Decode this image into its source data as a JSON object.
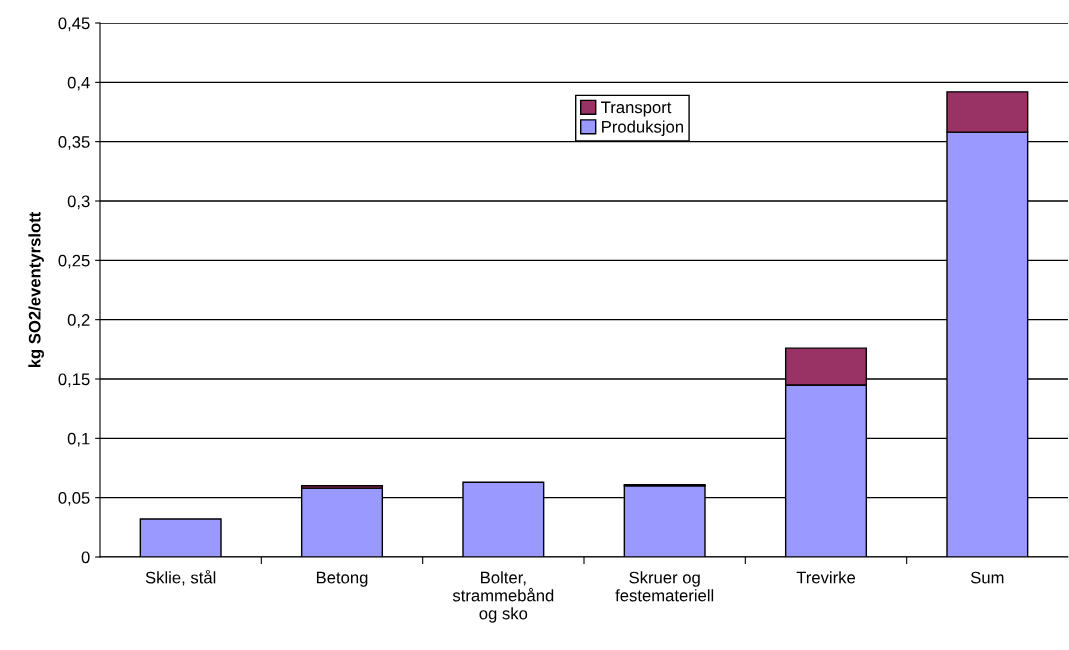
{
  "chart_data": {
    "type": "bar",
    "stacked": true,
    "ylabel": "kg SO2/eventyrslott",
    "categories": [
      "Sklie, stål",
      "Betong",
      "Bolter,\nstrammebånd\nog sko",
      "Skruer og\nfestemateriell",
      "Trevirke",
      "Sum"
    ],
    "series": [
      {
        "name": "Produksjon",
        "color": "#9999ff",
        "values": [
          0.032,
          0.058,
          0.063,
          0.06,
          0.145,
          0.358
        ]
      },
      {
        "name": "Transport",
        "color": "#993366",
        "values": [
          null,
          0.002,
          null,
          0.001,
          0.031,
          0.034
        ]
      }
    ],
    "ylim": [
      0,
      0.45
    ],
    "yticks": [
      {
        "value": 0,
        "label": "0"
      },
      {
        "value": 0.05,
        "label": "0,05"
      },
      {
        "value": 0.1,
        "label": "0,1"
      },
      {
        "value": 0.15,
        "label": "0,15"
      },
      {
        "value": 0.2,
        "label": "0,2"
      },
      {
        "value": 0.25,
        "label": "0,25"
      },
      {
        "value": 0.3,
        "label": "0,3"
      },
      {
        "value": 0.35,
        "label": "0,35"
      },
      {
        "value": 0.4,
        "label": "0,4"
      },
      {
        "value": 0.45,
        "label": "0,45"
      }
    ],
    "grid": "y",
    "legend": "top"
  }
}
